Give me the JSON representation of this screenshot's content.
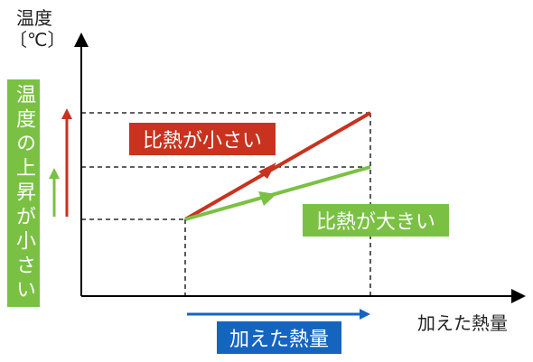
{
  "axes": {
    "y_label": "温度",
    "y_unit": "〔℃〕",
    "x_label": "加えた熱量"
  },
  "annotations": {
    "small_specific_heat": "比熱が小さい",
    "large_specific_heat": "比熱が大きい",
    "temperature_rise_small": "温度の上昇が小さい",
    "heat_added": "加えた熱量"
  }
}
